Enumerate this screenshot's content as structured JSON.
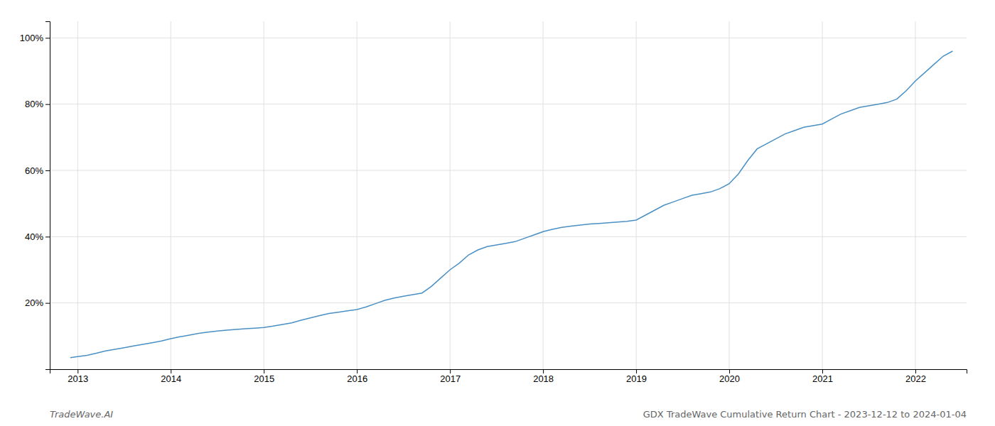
{
  "chart_data": {
    "type": "line",
    "x": [
      2012.92,
      2013.0,
      2013.1,
      2013.2,
      2013.3,
      2013.4,
      2013.5,
      2013.6,
      2013.7,
      2013.8,
      2013.9,
      2014.0,
      2014.1,
      2014.2,
      2014.3,
      2014.4,
      2014.5,
      2014.6,
      2014.7,
      2014.8,
      2014.9,
      2015.0,
      2015.1,
      2015.2,
      2015.3,
      2015.4,
      2015.5,
      2015.6,
      2015.7,
      2015.8,
      2015.9,
      2016.0,
      2016.1,
      2016.2,
      2016.3,
      2016.4,
      2016.5,
      2016.6,
      2016.7,
      2016.8,
      2016.9,
      2017.0,
      2017.1,
      2017.2,
      2017.3,
      2017.4,
      2017.5,
      2017.6,
      2017.7,
      2017.8,
      2017.9,
      2018.0,
      2018.1,
      2018.2,
      2018.3,
      2018.4,
      2018.5,
      2018.6,
      2018.7,
      2018.8,
      2018.9,
      2019.0,
      2019.1,
      2019.2,
      2019.3,
      2019.4,
      2019.5,
      2019.6,
      2019.7,
      2019.8,
      2019.9,
      2020.0,
      2020.1,
      2020.2,
      2020.3,
      2020.4,
      2020.5,
      2020.6,
      2020.7,
      2020.8,
      2020.9,
      2021.0,
      2021.1,
      2021.2,
      2021.3,
      2021.4,
      2021.5,
      2021.6,
      2021.7,
      2021.8,
      2021.9,
      2022.0,
      2022.1,
      2022.2,
      2022.3,
      2022.4
    ],
    "values": [
      3.5,
      3.8,
      4.2,
      4.8,
      5.5,
      6.0,
      6.5,
      7.0,
      7.5,
      8.0,
      8.5,
      9.2,
      9.8,
      10.3,
      10.8,
      11.2,
      11.5,
      11.8,
      12.0,
      12.2,
      12.4,
      12.6,
      13.0,
      13.5,
      14.0,
      14.8,
      15.5,
      16.2,
      16.8,
      17.2,
      17.6,
      18.0,
      18.8,
      19.8,
      20.8,
      21.5,
      22.0,
      22.5,
      23.0,
      25.0,
      27.5,
      30.0,
      32.0,
      34.5,
      36.0,
      37.0,
      37.5,
      38.0,
      38.5,
      39.5,
      40.5,
      41.5,
      42.2,
      42.8,
      43.2,
      43.5,
      43.8,
      44.0,
      44.2,
      44.4,
      44.6,
      45.0,
      46.5,
      48.0,
      49.5,
      50.5,
      51.5,
      52.5,
      53.0,
      53.5,
      54.5,
      56.0,
      59.0,
      63.0,
      66.5,
      68.0,
      69.5,
      71.0,
      72.0,
      73.0,
      73.5,
      74.0,
      75.5,
      77.0,
      78.0,
      79.0,
      79.5,
      80.0,
      80.5,
      81.5,
      84.0,
      87.0,
      89.5,
      92.0,
      94.5,
      96.0
    ],
    "color": "#4a90c4",
    "xlim": [
      2012.7,
      2022.55
    ],
    "xticks": [
      2013,
      2014,
      2015,
      2016,
      2017,
      2018,
      2019,
      2020,
      2021,
      2022
    ],
    "ylim": [
      0,
      105
    ],
    "yticks": [
      {
        "value": 20,
        "label": "20%"
      },
      {
        "value": 40,
        "label": "40%"
      },
      {
        "value": 60,
        "label": "60%"
      },
      {
        "value": 80,
        "label": "80%"
      },
      {
        "value": 100,
        "label": "100%"
      }
    ],
    "grid": true,
    "annotations": [
      {
        "text": "TradeWave.AI"
      },
      {
        "text": "GDX TradeWave Cumulative Return Chart - 2023-12-12 to 2024-01-04"
      }
    ]
  }
}
